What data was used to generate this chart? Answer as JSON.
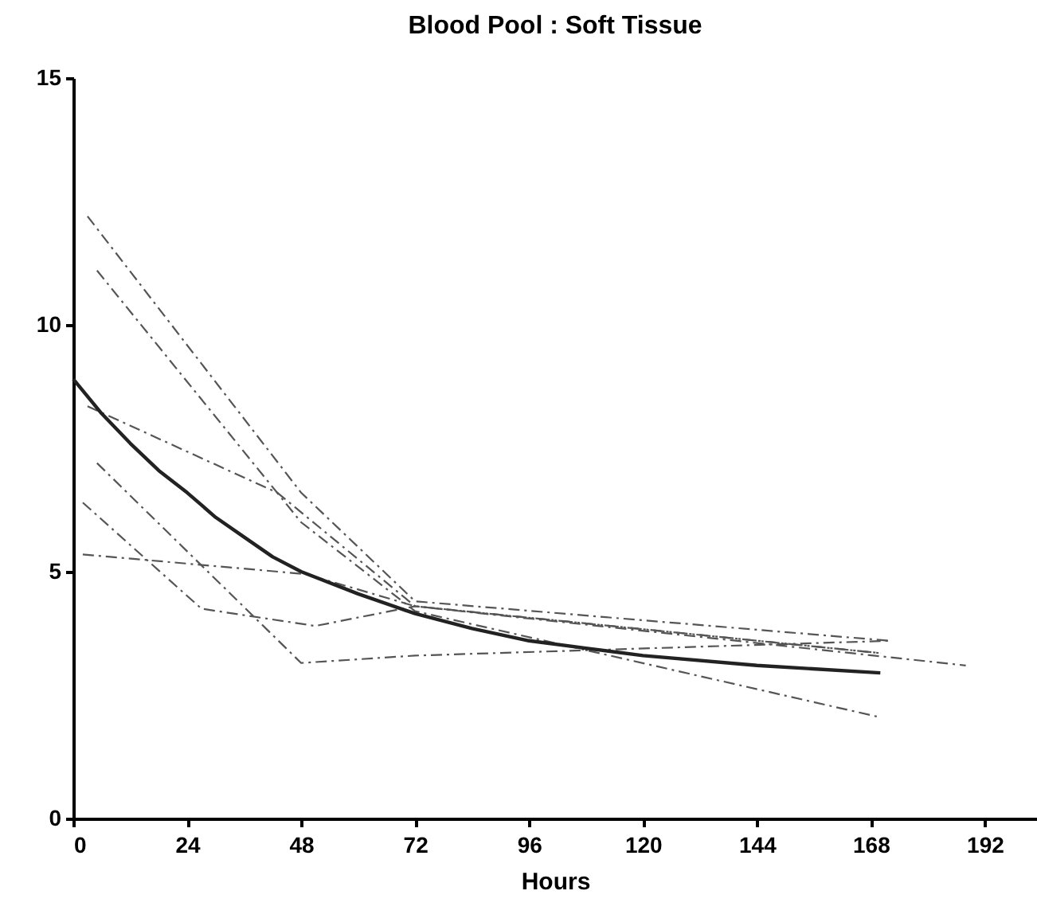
{
  "chart_data": {
    "type": "line",
    "title": "Blood Pool : Soft Tissue",
    "xlabel": "Hours",
    "xlim": [
      0,
      203
    ],
    "xticks": [
      0,
      24,
      48,
      72,
      96,
      120,
      144,
      168,
      192
    ],
    "ylim": [
      0,
      15
    ],
    "yticks": [
      0,
      5,
      10,
      15
    ],
    "series": [
      {
        "color": "#555555",
        "line_style": "dashed",
        "x": [
          3,
          48,
          72,
          172
        ],
        "values": [
          12.2,
          6.6,
          4.4,
          3.6
        ]
      },
      {
        "color": "#555555",
        "line_style": "dashed",
        "x": [
          5,
          48,
          72,
          170
        ],
        "values": [
          11.1,
          6.0,
          4.2,
          2.05
        ]
      },
      {
        "color": "#555555",
        "line_style": "dashed",
        "x": [
          3,
          43,
          72,
          170
        ],
        "values": [
          8.35,
          6.6,
          4.3,
          3.35
        ]
      },
      {
        "color": "#555555",
        "line_style": "dashed",
        "x": [
          5,
          48,
          72,
          172
        ],
        "values": [
          7.2,
          3.15,
          3.3,
          3.6
        ]
      },
      {
        "color": "#555555",
        "line_style": "dashed",
        "x": [
          2,
          27,
          51,
          72,
          188
        ],
        "values": [
          6.4,
          4.25,
          3.9,
          4.3,
          3.1
        ]
      },
      {
        "color": "#555555",
        "line_style": "dashed",
        "x": [
          2,
          49,
          72,
          170
        ],
        "values": [
          5.35,
          4.95,
          4.3,
          3.35
        ]
      },
      {
        "color": "#222222",
        "line_style": "solid",
        "x": [
          0,
          6,
          12,
          18,
          24,
          30,
          36,
          42,
          48,
          60,
          72,
          84,
          96,
          108,
          120,
          144,
          170
        ],
        "values": [
          8.9,
          8.2,
          7.6,
          7.05,
          6.6,
          6.1,
          5.7,
          5.3,
          5.0,
          4.55,
          4.15,
          3.85,
          3.6,
          3.45,
          3.3,
          3.1,
          2.95
        ]
      }
    ]
  }
}
